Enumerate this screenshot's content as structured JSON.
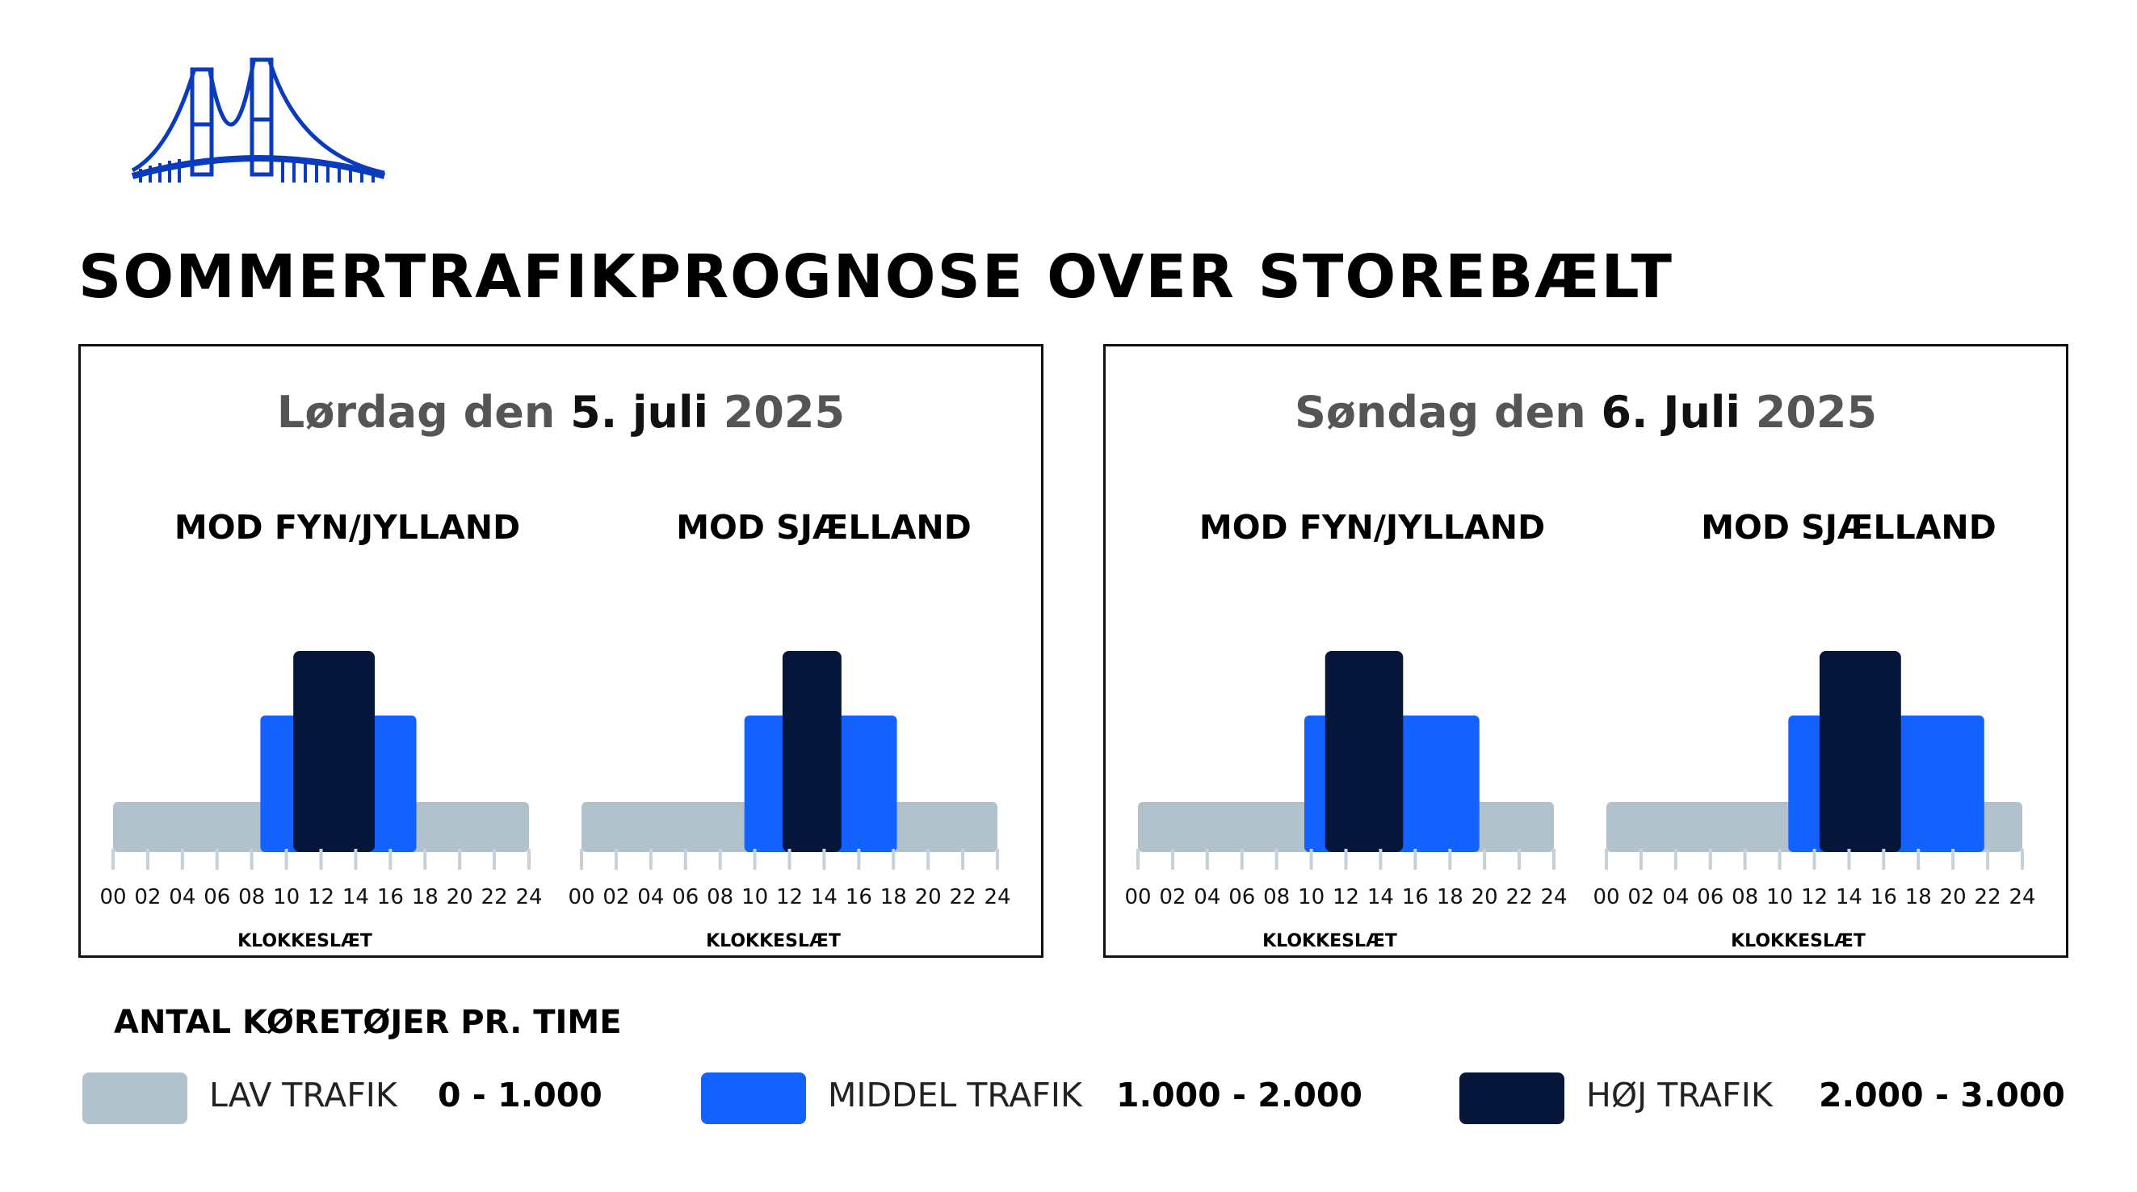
{
  "title": "SOMMERTRAFIKPROGNOSE OVER STOREBÆLT",
  "icons": {
    "logo": "suspension-bridge-icon"
  },
  "colors": {
    "low": "#b1c2cc",
    "medium": "#1361ff",
    "high": "#06163b",
    "logo": "#0b3bbd"
  },
  "legend": {
    "heading": "ANTAL KØRETØJER PR. TIME",
    "items": [
      {
        "label": "LAV TRAFIK",
        "range": "0 - 1.000",
        "level": "low"
      },
      {
        "label": "MIDDEL TRAFIK",
        "range": "1.000 - 2.000",
        "level": "medium"
      },
      {
        "label": "HØJ TRAFIK",
        "range": "2.000 - 3.000",
        "level": "high"
      }
    ]
  },
  "panels": [
    {
      "title_parts": [
        "Lørdag den ",
        "5. juli",
        " 2025"
      ]
    },
    {
      "title_parts": [
        "Søndag den ",
        "6. Juli",
        " 2025"
      ]
    }
  ],
  "chart_data": [
    {
      "type": "bar",
      "panel": 0,
      "title": "MOD FYN/JYLLAND",
      "xlabel": "KLOKKESLÆT",
      "x_ticks": [
        "00",
        "02",
        "04",
        "06",
        "08",
        "10",
        "12",
        "14",
        "16",
        "18",
        "20",
        "22",
        "24"
      ],
      "xlim": [
        0,
        24
      ],
      "segments": [
        {
          "level": "low",
          "start": 0,
          "end": 24
        },
        {
          "level": "medium",
          "start": 8.5,
          "end": 17.5
        },
        {
          "level": "high",
          "start": 10.4,
          "end": 15.1
        }
      ]
    },
    {
      "type": "bar",
      "panel": 0,
      "title": "MOD SJÆLLAND",
      "xlabel": "KLOKKESLÆT",
      "x_ticks": [
        "00",
        "02",
        "04",
        "06",
        "08",
        "10",
        "12",
        "14",
        "16",
        "18",
        "20",
        "22",
        "24"
      ],
      "xlim": [
        0,
        24
      ],
      "segments": [
        {
          "level": "low",
          "start": 0,
          "end": 24
        },
        {
          "level": "medium",
          "start": 9.4,
          "end": 18.2
        },
        {
          "level": "high",
          "start": 11.6,
          "end": 15.0
        }
      ]
    },
    {
      "type": "bar",
      "panel": 1,
      "title": "MOD FYN/JYLLAND",
      "xlabel": "KLOKKESLÆT",
      "x_ticks": [
        "00",
        "02",
        "04",
        "06",
        "08",
        "10",
        "12",
        "14",
        "16",
        "18",
        "20",
        "22",
        "24"
      ],
      "xlim": [
        0,
        24
      ],
      "segments": [
        {
          "level": "low",
          "start": 0,
          "end": 24
        },
        {
          "level": "medium",
          "start": 9.6,
          "end": 19.7
        },
        {
          "level": "high",
          "start": 10.8,
          "end": 15.3
        }
      ]
    },
    {
      "type": "bar",
      "panel": 1,
      "title": "MOD SJÆLLAND",
      "xlabel": "KLOKKESLÆT",
      "x_ticks": [
        "00",
        "02",
        "04",
        "06",
        "08",
        "10",
        "12",
        "14",
        "16",
        "18",
        "20",
        "22",
        "24"
      ],
      "xlim": [
        0,
        24
      ],
      "segments": [
        {
          "level": "low",
          "start": 0,
          "end": 24
        },
        {
          "level": "medium",
          "start": 10.5,
          "end": 21.8
        },
        {
          "level": "high",
          "start": 12.3,
          "end": 17.0
        }
      ]
    }
  ]
}
